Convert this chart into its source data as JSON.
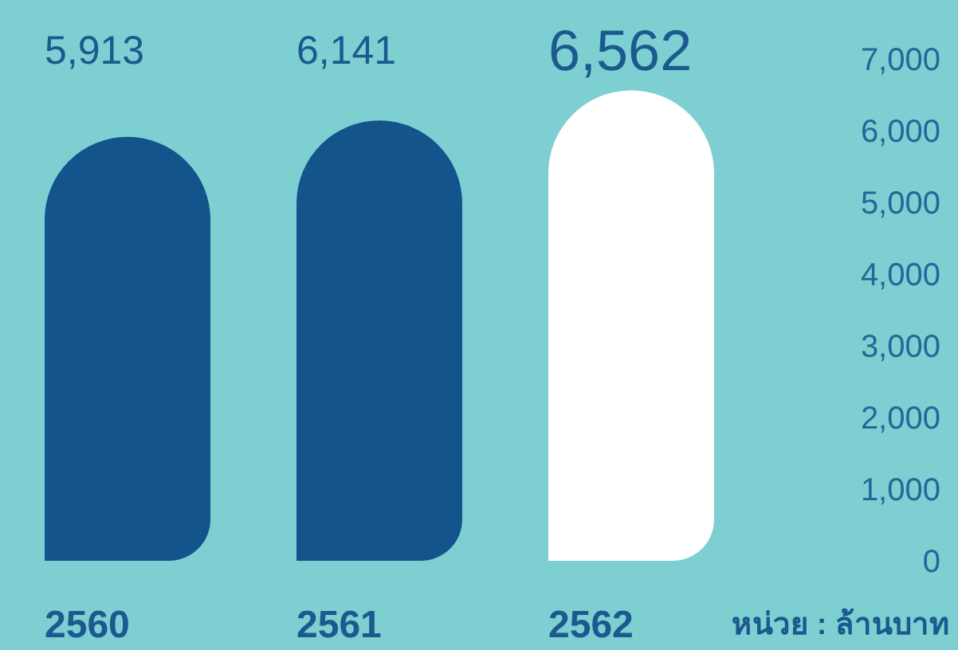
{
  "chart_data": {
    "type": "bar",
    "categories": [
      "2560",
      "2561",
      "2562"
    ],
    "values": [
      5913,
      6141,
      6562
    ],
    "colors": [
      "#13548c",
      "#13548c",
      "#ffffff"
    ],
    "value_labels": [
      "5,913",
      "6,141",
      "6,562"
    ],
    "ylim": [
      0,
      7000
    ],
    "yticks": [
      {
        "value": 0,
        "label": "0"
      },
      {
        "value": 1000,
        "label": "1,000"
      },
      {
        "value": 2000,
        "label": "2,000"
      },
      {
        "value": 3000,
        "label": "3,000"
      },
      {
        "value": 4000,
        "label": "4,000"
      },
      {
        "value": 5000,
        "label": "5,000"
      },
      {
        "value": 6000,
        "label": "6,000"
      },
      {
        "value": 7000,
        "label": "7,000"
      }
    ],
    "annotations": [
      "หน่วย : ล้านบาท"
    ]
  }
}
